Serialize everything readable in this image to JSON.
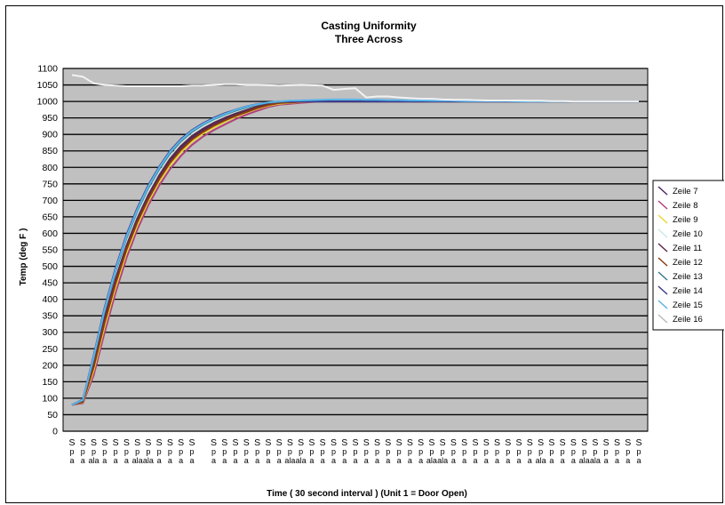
{
  "chart_data": {
    "type": "line",
    "title": "Casting Uniformity",
    "subtitle": "Three  Across",
    "xlabel": "Time ( 30 second interval ) (Unit 1 = Door Open)",
    "ylabel": "Temp (deg F )",
    "ylim": [
      0,
      1100
    ],
    "yticks": [
      0,
      50,
      100,
      150,
      200,
      250,
      300,
      350,
      400,
      450,
      500,
      550,
      600,
      650,
      700,
      750,
      800,
      850,
      900,
      950,
      1000,
      1050,
      1100
    ],
    "grid": true,
    "legend_position": "right",
    "plot_background": "#c0c0c0",
    "category_labels": [
      "S\np\na",
      "S\np\na",
      "S\np\nala",
      "S\np\na",
      "S\np\na",
      "S\np\na",
      "S\np\nala",
      "S\np\nala",
      "S\np\na",
      "S\np\na",
      "S\np\na",
      "S\np\na",
      "",
      "S\np\na",
      "S\np\na",
      "S\np\na",
      "S\np\na",
      "S\np\na",
      "S\np\na",
      "S\np\na",
      "S\np\nala",
      "S\np\nala",
      "S\np\na",
      "S\np\na",
      "S\np\na",
      "S\np\na",
      "S\np\na",
      "S\np\na",
      "S\np\na",
      "S\np\na",
      "S\np\na",
      "S\np\na",
      "S\np\na",
      "S\np\nala",
      "S\np\nala",
      "S\np\na",
      "S\np\na",
      "S\np\na",
      "S\np\na",
      "S\np\na",
      "S\np\na",
      "S\np\na",
      "S\np\na",
      "S\np\nala",
      "S\np\na",
      "S\np\na",
      "S\np\na",
      "S\np\nala",
      "S\np\nala",
      "S\np\na",
      "S\np\na",
      "S\np\na",
      "S\np\na"
    ],
    "x": [
      1,
      2,
      3,
      4,
      5,
      6,
      7,
      8,
      9,
      10,
      11,
      12,
      13,
      14,
      15,
      16,
      17,
      18,
      19,
      20,
      21,
      22,
      23,
      24,
      25,
      26,
      27,
      28,
      29,
      30,
      31,
      32,
      33,
      34,
      35,
      36,
      37,
      38,
      39,
      40,
      41,
      42,
      43,
      44,
      45,
      46,
      47,
      48,
      49,
      50,
      51,
      52,
      53
    ],
    "series": [
      {
        "name": "Zeile 7",
        "color": "#4b2a63",
        "values": [
          80,
          90,
          200,
          340,
          455,
          555,
          640,
          710,
          770,
          820,
          860,
          890,
          912,
          930,
          945,
          958,
          970,
          982,
          990,
          996,
          998,
          1000,
          1000,
          1000,
          1000,
          1000,
          1000,
          1000,
          1000,
          1000,
          1000,
          1000,
          1000,
          1000,
          1000,
          1000,
          1000,
          1000,
          1000,
          1000,
          1000,
          1000,
          1000,
          1000,
          1000,
          1000,
          1000,
          1000,
          1000,
          1000,
          1000,
          1000,
          1000
        ]
      },
      {
        "name": "Zeile 8",
        "color": "#b0407a",
        "values": [
          80,
          85,
          170,
          300,
          420,
          525,
          612,
          685,
          745,
          795,
          835,
          868,
          893,
          913,
          930,
          946,
          960,
          972,
          983,
          990,
          993,
          996,
          998,
          1000,
          1000,
          1000,
          1000,
          1000,
          1000,
          1000,
          1000,
          1000,
          1000,
          1000,
          1000,
          1000,
          1000,
          1000,
          1000,
          1000,
          1000,
          1000,
          1000,
          1000,
          1000,
          1000,
          1000,
          1000,
          1000,
          1000,
          1000,
          1000,
          1000
        ]
      },
      {
        "name": "Zeile 9",
        "color": "#e8d832",
        "values": [
          80,
          88,
          185,
          318,
          437,
          540,
          625,
          697,
          757,
          806,
          846,
          878,
          902,
          921,
          938,
          953,
          966,
          978,
          987,
          993,
          996,
          998,
          1000,
          1000,
          1000,
          1000,
          1000,
          1000,
          1000,
          1000,
          1000,
          1000,
          1000,
          1000,
          1000,
          1000,
          1000,
          1000,
          1000,
          1000,
          1000,
          1000,
          1000,
          1000,
          1000,
          1000,
          1000,
          1000,
          1000,
          1000,
          1000,
          1000,
          1000
        ]
      },
      {
        "name": "Zeile 10",
        "color": "#c8e8e8",
        "values": [
          80,
          92,
          210,
          352,
          470,
          570,
          655,
          725,
          783,
          832,
          870,
          900,
          922,
          940,
          955,
          967,
          978,
          988,
          994,
          998,
          1000,
          1000,
          1000,
          1000,
          1000,
          1000,
          1000,
          1000,
          1000,
          1000,
          1000,
          1000,
          1000,
          1000,
          1000,
          1000,
          1000,
          1000,
          1000,
          1000,
          1000,
          1000,
          1000,
          1000,
          1000,
          1000,
          1000,
          1000,
          1000,
          1000,
          1000,
          1000,
          1000
        ]
      },
      {
        "name": "Zeile 11",
        "color": "#5c2848",
        "values": [
          80,
          91,
          205,
          345,
          462,
          562,
          646,
          716,
          776,
          826,
          865,
          895,
          917,
          935,
          950,
          963,
          974,
          985,
          992,
          997,
          999,
          1000,
          1000,
          1000,
          1000,
          1000,
          1000,
          1000,
          1000,
          1000,
          1000,
          1000,
          1000,
          1000,
          1000,
          1000,
          1000,
          1000,
          1000,
          1000,
          1000,
          1000,
          1000,
          1000,
          1000,
          1000,
          1000,
          1000,
          1000,
          1000,
          1000,
          1000,
          1000
        ]
      },
      {
        "name": "Zeile 12",
        "color": "#8a3a14",
        "values": [
          80,
          89,
          195,
          330,
          448,
          550,
          634,
          704,
          764,
          814,
          853,
          884,
          907,
          926,
          942,
          956,
          968,
          980,
          989,
          995,
          997,
          999,
          1000,
          1000,
          1000,
          1000,
          1000,
          1000,
          1000,
          1000,
          1000,
          1000,
          1000,
          1000,
          1000,
          1000,
          1000,
          1000,
          1000,
          1000,
          1000,
          1000,
          1000,
          1000,
          1000,
          1000,
          1000,
          1000,
          1000,
          1000,
          1000,
          1000,
          1000
        ]
      },
      {
        "name": "Zeile 13",
        "color": "#3a7a8a",
        "values": [
          80,
          94,
          222,
          365,
          485,
          585,
          668,
          738,
          795,
          843,
          880,
          908,
          929,
          946,
          960,
          972,
          982,
          990,
          996,
          999,
          1000,
          1000,
          1000,
          1000,
          1000,
          1000,
          1000,
          1000,
          1000,
          1000,
          1000,
          1000,
          1000,
          1000,
          1000,
          1000,
          1000,
          1000,
          1000,
          1000,
          1000,
          1000,
          1000,
          1000,
          1000,
          1000,
          1000,
          1000,
          1000,
          1000,
          1000,
          1000,
          1000
        ]
      },
      {
        "name": "Zeile 14",
        "color": "#3a3a8e",
        "values": [
          80,
          96,
          230,
          375,
          495,
          595,
          677,
          746,
          802,
          850,
          886,
          913,
          933,
          950,
          964,
          975,
          985,
          992,
          997,
          1000,
          1000,
          1000,
          1000,
          1000,
          1000,
          1000,
          1000,
          1000,
          1000,
          1000,
          1000,
          1000,
          1000,
          1000,
          1000,
          1000,
          1000,
          1000,
          1000,
          1000,
          1000,
          1000,
          1000,
          1000,
          1000,
          1000,
          1000,
          1000,
          1000,
          1000,
          1000,
          1000,
          1000
        ]
      },
      {
        "name": "Zeile 15",
        "color": "#58b4e8",
        "values": [
          80,
          95,
          226,
          370,
          490,
          590,
          672,
          742,
          799,
          847,
          883,
          911,
          931,
          948,
          962,
          974,
          984,
          991,
          997,
          1000,
          1002,
          1003,
          1004,
          1005,
          1006,
          1006,
          1006,
          1005,
          1005,
          1004,
          1004,
          1003,
          1003,
          1002,
          1002,
          1002,
          1001,
          1001,
          1001,
          1001,
          1001,
          1000,
          1000,
          1000,
          1000,
          1000,
          1000,
          1000,
          1000,
          1000,
          1000,
          1000,
          1000
        ]
      },
      {
        "name": "Zeile 16",
        "color": "#f2f2f2",
        "values": [
          1080,
          1075,
          1055,
          1050,
          1048,
          1046,
          1046,
          1046,
          1046,
          1046,
          1046,
          1048,
          1048,
          1050,
          1052,
          1052,
          1050,
          1050,
          1049,
          1048,
          1049,
          1050,
          1049,
          1048,
          1035,
          1038,
          1040,
          1012,
          1015,
          1015,
          1012,
          1010,
          1008,
          1008,
          1006,
          1005,
          1005,
          1004,
          1003,
          1003,
          1003,
          1003,
          1002,
          1002,
          1001,
          1001,
          1000,
          1000,
          1000,
          1000,
          1000,
          1000,
          1000
        ]
      }
    ]
  }
}
